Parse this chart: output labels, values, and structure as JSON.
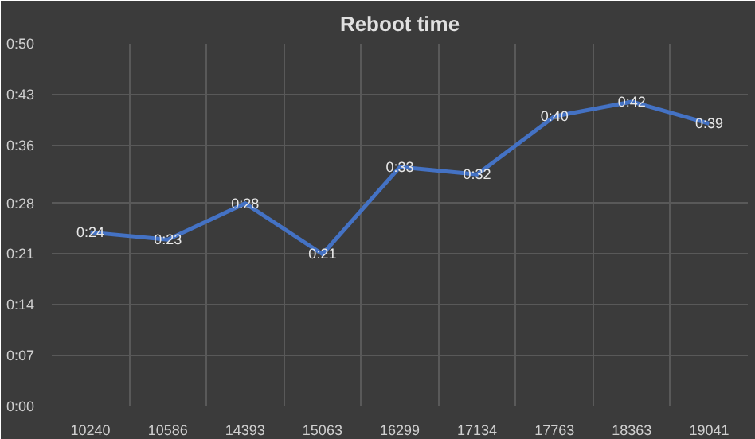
{
  "chart_data": {
    "type": "line",
    "title": "Reboot time",
    "categories": [
      "10240",
      "10586",
      "14393",
      "15063",
      "16299",
      "17134",
      "17763",
      "18363",
      "19041"
    ],
    "series": [
      {
        "color": "#4472c4",
        "values": [
          24,
          23,
          28,
          21,
          33,
          32,
          40,
          42,
          39
        ],
        "value_labels": [
          "0:24",
          "0:23",
          "0:28",
          "0:21",
          "0:33",
          "0:32",
          "0:40",
          "0:42",
          "0:39"
        ]
      }
    ],
    "ylim": [
      0,
      50
    ],
    "yticks": [
      {
        "value": 0,
        "label": "0:00"
      },
      {
        "value": 7,
        "label": "0:07"
      },
      {
        "value": 14,
        "label": "0:14"
      },
      {
        "value": 21,
        "label": "0:21"
      },
      {
        "value": 28,
        "label": "0:28"
      },
      {
        "value": 36,
        "label": "0:36"
      },
      {
        "value": 43,
        "label": "0:43"
      },
      {
        "value": 50,
        "label": "0:50"
      }
    ],
    "grid": true,
    "line_style": "solid"
  }
}
